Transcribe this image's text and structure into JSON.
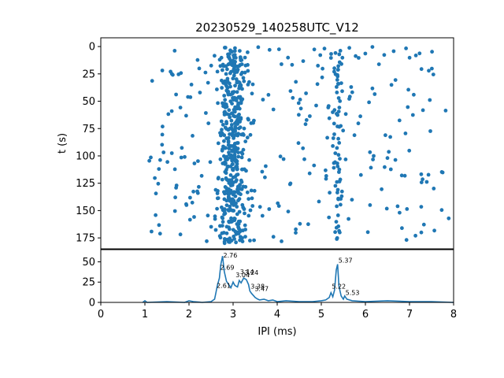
{
  "chart_data": [
    {
      "type": "scatter",
      "title": "20230529_140258UTC_V12",
      "xlabel": "",
      "ylabel": "t (s)",
      "xlim": [
        0,
        8
      ],
      "ylim": [
        185,
        -8
      ],
      "y_inverted": true,
      "yticks": [
        0,
        25,
        50,
        75,
        100,
        125,
        150,
        175
      ],
      "marker_color": "#1f77b4",
      "point_clusters": [
        {
          "x_center": 3.0,
          "x_spread": 0.18,
          "t_range": [
            0,
            180
          ],
          "count": 420
        },
        {
          "x_center": 5.37,
          "x_spread": 0.05,
          "t_range": [
            0,
            180
          ],
          "count": 60
        },
        {
          "x_center": 4.5,
          "x_spread": 3.4,
          "t_range": [
            0,
            180
          ],
          "count": 260
        }
      ]
    },
    {
      "type": "line",
      "title": "",
      "xlabel": "IPI (ms)",
      "ylabel": "",
      "xlim": [
        0,
        8
      ],
      "ylim": [
        0,
        65
      ],
      "xticks": [
        0,
        1,
        2,
        3,
        4,
        5,
        6,
        7,
        8
      ],
      "yticks": [
        0,
        25,
        50
      ],
      "line_color": "#1f77b4",
      "series": [
        {
          "x": [
            0.95,
            1.0,
            1.05,
            1.5,
            1.9,
            2.0,
            2.1,
            2.3,
            2.5,
            2.58,
            2.61,
            2.64,
            2.69,
            2.72,
            2.76,
            2.8,
            2.85,
            2.9,
            2.95,
            3.0,
            3.04,
            3.1,
            3.14,
            3.18,
            3.24,
            3.3,
            3.35,
            3.38,
            3.42,
            3.47,
            3.5,
            3.56,
            3.6,
            3.7,
            3.8,
            3.9,
            4.0,
            4.2,
            4.5,
            4.8,
            5.0,
            5.1,
            5.18,
            5.22,
            5.26,
            5.3,
            5.34,
            5.37,
            5.4,
            5.45,
            5.5,
            5.53,
            5.58,
            5.7,
            6.0,
            6.5,
            7.0,
            7.5,
            8.0
          ],
          "y": [
            0,
            2,
            0,
            1,
            0,
            2,
            1,
            0,
            1,
            4,
            12,
            20,
            30,
            46,
            57,
            38,
            26,
            22,
            18,
            25,
            21,
            19,
            27,
            24,
            30,
            28,
            22,
            14,
            11,
            8,
            6,
            4,
            3,
            4,
            2,
            3,
            1,
            2,
            1,
            1,
            2,
            3,
            6,
            12,
            7,
            15,
            40,
            47,
            20,
            8,
            4,
            8,
            4,
            2,
            1,
            2,
            1,
            1,
            0
          ]
        }
      ],
      "annotations": [
        {
          "x": 2.76,
          "y": 57,
          "text": "2.76"
        },
        {
          "x": 2.69,
          "y": 42,
          "text": "2.69"
        },
        {
          "x": 2.61,
          "y": 20,
          "text": "2.61"
        },
        {
          "x": 3.04,
          "y": 33,
          "text": "3.04"
        },
        {
          "x": 3.14,
          "y": 37,
          "text": "3.14"
        },
        {
          "x": 3.24,
          "y": 36,
          "text": "3.24"
        },
        {
          "x": 3.38,
          "y": 19,
          "text": "3.38"
        },
        {
          "x": 3.47,
          "y": 16,
          "text": "3.47"
        },
        {
          "x": 5.37,
          "y": 51,
          "text": "5.37"
        },
        {
          "x": 5.22,
          "y": 19,
          "text": "5.22"
        },
        {
          "x": 5.53,
          "y": 11,
          "text": "5.53"
        }
      ]
    }
  ]
}
